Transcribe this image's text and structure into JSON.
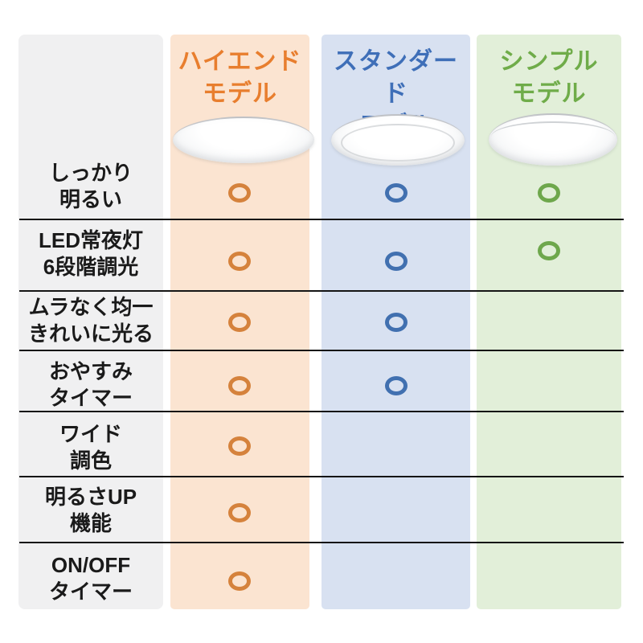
{
  "comparison_table": {
    "description_symbol": "○",
    "label_column_bg": "#F0F0F1",
    "divider_color": "#151515",
    "models": [
      {
        "name": "ハイエンド\nモデル",
        "theme_color": "#E87E2E",
        "bg_color": "#FBE4D1",
        "circle_color": "#D5823C",
        "image": "ceiling-light-high-end"
      },
      {
        "name": "スタンダード\nモデル",
        "theme_color": "#3F6FB8",
        "bg_color": "#D8E1F1",
        "circle_color": "#4170B0",
        "image": "ceiling-light-standard"
      },
      {
        "name": "シンプル\nモデル",
        "theme_color": "#6FAC49",
        "bg_color": "#E2EFD9",
        "circle_color": "#6EA74C",
        "image": "ceiling-light-simple"
      }
    ],
    "features": [
      {
        "label": "しっかり\n明るい",
        "availability": [
          true,
          true,
          true
        ]
      },
      {
        "label": "LED常夜灯\n6段階調光",
        "availability": [
          true,
          true,
          true
        ]
      },
      {
        "label": "ムラなく均一\nきれいに光る",
        "availability": [
          true,
          true,
          false
        ]
      },
      {
        "label": "おやすみ\nタイマー",
        "availability": [
          true,
          true,
          false
        ]
      },
      {
        "label": "ワイド\n調色",
        "availability": [
          true,
          false,
          false
        ]
      },
      {
        "label": "明るさUP\n機能",
        "availability": [
          true,
          false,
          false
        ]
      },
      {
        "label": "ON/OFF\nタイマー",
        "availability": [
          true,
          false,
          false
        ]
      }
    ]
  }
}
